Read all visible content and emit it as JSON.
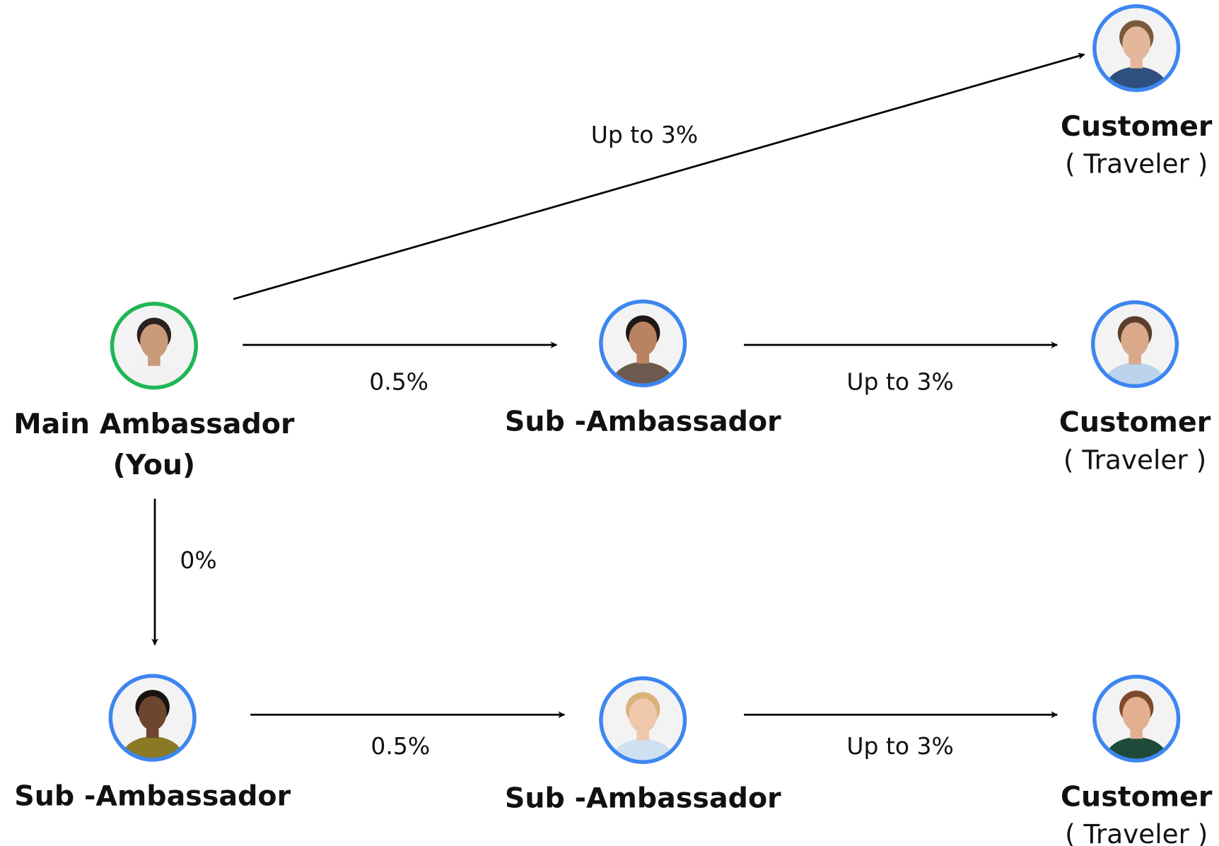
{
  "nodes": [
    {
      "title": "Main Ambassador",
      "subtitle": "(You)"
    },
    {
      "title": "Sub -Ambassador"
    },
    {
      "title": "Customer",
      "subtitle": "( Traveler )"
    },
    {
      "title": "Customer",
      "subtitle": "( Traveler )"
    },
    {
      "title": "Sub -Ambassador"
    },
    {
      "title": "Sub -Ambassador"
    },
    {
      "title": "Customer",
      "subtitle": "( Traveler )"
    }
  ],
  "edges": [
    {
      "label": "Up to 3%"
    },
    {
      "label": "0.5%"
    },
    {
      "label": "Up to 3%"
    },
    {
      "label": "0%"
    },
    {
      "label": "0.5%"
    },
    {
      "label": "Up to 3%"
    }
  ]
}
